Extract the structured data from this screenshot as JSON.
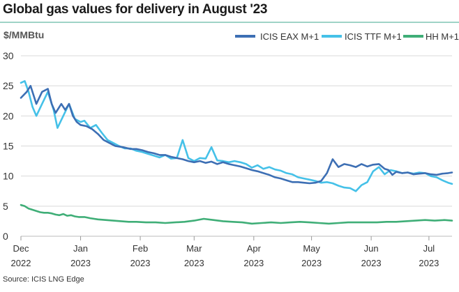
{
  "title": "Global gas values for delivery in August '23",
  "source": "Source: ICIS LNG Edge",
  "chart_data": {
    "type": "line",
    "ylabel": "$/MMBtu",
    "xlabel": "",
    "ylim": [
      0,
      30
    ],
    "yticks": [
      0,
      5,
      10,
      15,
      20,
      25,
      30
    ],
    "xlim": [
      0,
      224
    ],
    "xticks": [
      {
        "x": 0,
        "month": "Dec",
        "year": "2022"
      },
      {
        "x": 31,
        "month": "Jan",
        "year": "2023"
      },
      {
        "x": 62,
        "month": "Feb",
        "year": "2023"
      },
      {
        "x": 90,
        "month": "Mar",
        "year": "2023"
      },
      {
        "x": 121,
        "month": "Apr",
        "year": "2023"
      },
      {
        "x": 151,
        "month": "May",
        "year": "2023"
      },
      {
        "x": 182,
        "month": "Jun",
        "year": "2023"
      },
      {
        "x": 212,
        "month": "Jul",
        "year": "2023"
      }
    ],
    "grid": true,
    "legend_position": "top-right",
    "series": [
      {
        "name": "ICIS EAX M+1",
        "color": "#3d6fb4",
        "x": [
          0,
          3,
          5,
          8,
          11,
          14,
          16,
          18,
          21,
          23,
          25,
          27,
          29,
          31,
          34,
          37,
          40,
          43,
          46,
          49,
          53,
          57,
          60,
          63,
          66,
          69,
          72,
          75,
          78,
          81,
          84,
          87,
          90,
          93,
          96,
          99,
          102,
          105,
          108,
          111,
          114,
          117,
          120,
          123,
          126,
          129,
          132,
          135,
          138,
          141,
          144,
          147,
          150,
          153,
          156,
          159,
          162,
          165,
          168,
          171,
          174,
          177,
          180,
          183,
          186,
          189,
          191,
          193,
          195,
          198,
          201,
          204,
          207,
          210,
          213,
          216,
          219,
          222,
          224
        ],
        "y": [
          23,
          24,
          25,
          22,
          24,
          24.5,
          22,
          20.5,
          22,
          21,
          22,
          20,
          19,
          18.5,
          18.3,
          17.8,
          17,
          16,
          15.5,
          15,
          14.8,
          14.5,
          14.5,
          14.3,
          14,
          13.8,
          13.5,
          13.5,
          13.2,
          13,
          12.8,
          12.5,
          12.3,
          12.5,
          12.2,
          12.4,
          12,
          12.3,
          12,
          11.8,
          11.6,
          11.3,
          11,
          10.8,
          10.5,
          10.2,
          9.8,
          9.6,
          9.3,
          9,
          9,
          8.9,
          8.8,
          8.9,
          9.2,
          10.5,
          12.8,
          11.5,
          12,
          11.8,
          11.5,
          12,
          11.6,
          11.9,
          12,
          11.2,
          11,
          10.2,
          10.7,
          10.5,
          10.6,
          10.3,
          10.4,
          10.5,
          10.3,
          10.2,
          10.4,
          10.5,
          10.6
        ]
      },
      {
        "name": "ICIS TTF M+1",
        "color": "#45c1e8",
        "x": [
          0,
          2,
          4,
          6,
          8,
          11,
          14,
          17,
          19,
          22,
          25,
          28,
          31,
          33,
          36,
          39,
          42,
          45,
          48,
          51,
          54,
          57,
          60,
          63,
          66,
          69,
          72,
          75,
          78,
          81,
          84,
          87,
          90,
          93,
          96,
          99,
          102,
          105,
          108,
          111,
          114,
          117,
          120,
          123,
          126,
          129,
          132,
          135,
          138,
          141,
          144,
          147,
          150,
          153,
          156,
          159,
          162,
          165,
          168,
          171,
          174,
          177,
          180,
          183,
          186,
          189,
          192,
          195,
          198,
          201,
          204,
          207,
          210,
          213,
          216,
          219,
          222,
          224
        ],
        "y": [
          25.5,
          25.8,
          24,
          21.5,
          20,
          22,
          24,
          21,
          18,
          20,
          22,
          19.5,
          19,
          19.2,
          18,
          18.5,
          17.2,
          16,
          15.5,
          15,
          14.6,
          14.6,
          14.2,
          14,
          13.7,
          13.4,
          13.1,
          13.5,
          12.9,
          13,
          16,
          13,
          12.5,
          13,
          12.9,
          14.8,
          12.6,
          12.5,
          12.3,
          12.5,
          12.3,
          12,
          11.4,
          11.8,
          11.2,
          11.5,
          11.1,
          10.9,
          10.5,
          10.3,
          9.8,
          9.6,
          9.4,
          9.2,
          8.9,
          9,
          8.8,
          8.4,
          8.1,
          8,
          7.5,
          8.5,
          9,
          10.8,
          11.5,
          10.3,
          11,
          10.8,
          10.5,
          10.6,
          10.4,
          10.6,
          10.5,
          10,
          9.8,
          9.3,
          8.9,
          8.7
        ]
      },
      {
        "name": "HH M+1",
        "color": "#3fae77",
        "x": [
          0,
          2,
          4,
          6,
          8,
          10,
          12,
          14,
          16,
          18,
          20,
          22,
          24,
          26,
          28,
          30,
          33,
          36,
          40,
          44,
          48,
          52,
          56,
          60,
          65,
          70,
          75,
          80,
          85,
          90,
          95,
          100,
          105,
          110,
          115,
          120,
          125,
          130,
          135,
          140,
          145,
          150,
          155,
          160,
          165,
          170,
          175,
          180,
          185,
          190,
          195,
          200,
          205,
          210,
          215,
          220,
          224
        ],
        "y": [
          5.2,
          5,
          4.6,
          4.4,
          4.2,
          4,
          3.9,
          3.9,
          3.8,
          3.6,
          3.5,
          3.7,
          3.4,
          3.5,
          3.3,
          3.2,
          3.2,
          3,
          2.8,
          2.7,
          2.6,
          2.5,
          2.4,
          2.4,
          2.3,
          2.3,
          2.2,
          2.3,
          2.4,
          2.6,
          2.9,
          2.7,
          2.5,
          2.4,
          2.3,
          2.1,
          2.2,
          2.3,
          2.2,
          2.3,
          2.4,
          2.3,
          2.2,
          2.1,
          2.2,
          2.3,
          2.3,
          2.3,
          2.3,
          2.4,
          2.4,
          2.5,
          2.6,
          2.7,
          2.6,
          2.7,
          2.6
        ]
      }
    ]
  }
}
